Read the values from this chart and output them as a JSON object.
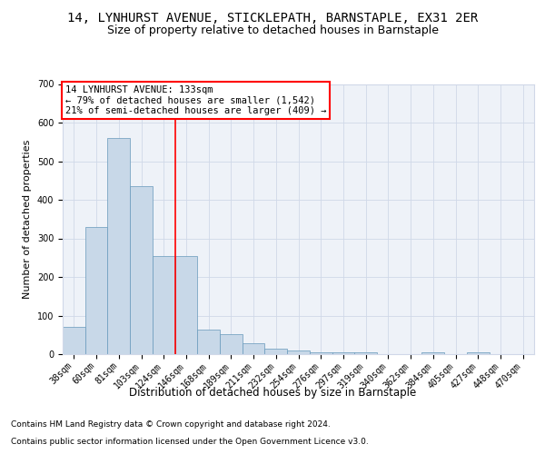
{
  "title1": "14, LYNHURST AVENUE, STICKLEPATH, BARNSTAPLE, EX31 2ER",
  "title2": "Size of property relative to detached houses in Barnstaple",
  "xlabel": "Distribution of detached houses by size in Barnstaple",
  "ylabel": "Number of detached properties",
  "footnote1": "Contains HM Land Registry data © Crown copyright and database right 2024.",
  "footnote2": "Contains public sector information licensed under the Open Government Licence v3.0.",
  "categories": [
    "38sqm",
    "60sqm",
    "81sqm",
    "103sqm",
    "124sqm",
    "146sqm",
    "168sqm",
    "189sqm",
    "211sqm",
    "232sqm",
    "254sqm",
    "276sqm",
    "297sqm",
    "319sqm",
    "340sqm",
    "362sqm",
    "384sqm",
    "405sqm",
    "427sqm",
    "448sqm",
    "470sqm"
  ],
  "values": [
    70,
    330,
    560,
    435,
    255,
    255,
    63,
    52,
    28,
    15,
    10,
    5,
    5,
    5,
    0,
    0,
    5,
    0,
    5,
    0,
    0
  ],
  "bar_color": "#c8d8e8",
  "bar_edge_color": "#6699bb",
  "vline_x": 4.5,
  "vline_color": "red",
  "annotation_title": "14 LYNHURST AVENUE: 133sqm",
  "annotation_line1": "← 79% of detached houses are smaller (1,542)",
  "annotation_line2": "21% of semi-detached houses are larger (409) →",
  "annotation_box_color": "red",
  "ylim": [
    0,
    700
  ],
  "yticks": [
    0,
    100,
    200,
    300,
    400,
    500,
    600,
    700
  ],
  "grid_color": "#d0d8e8",
  "bg_color": "#eef2f8",
  "title1_fontsize": 10,
  "title2_fontsize": 9,
  "xlabel_fontsize": 8.5,
  "ylabel_fontsize": 8,
  "tick_fontsize": 7,
  "footnote_fontsize": 6.5,
  "annotation_fontsize": 7.5
}
